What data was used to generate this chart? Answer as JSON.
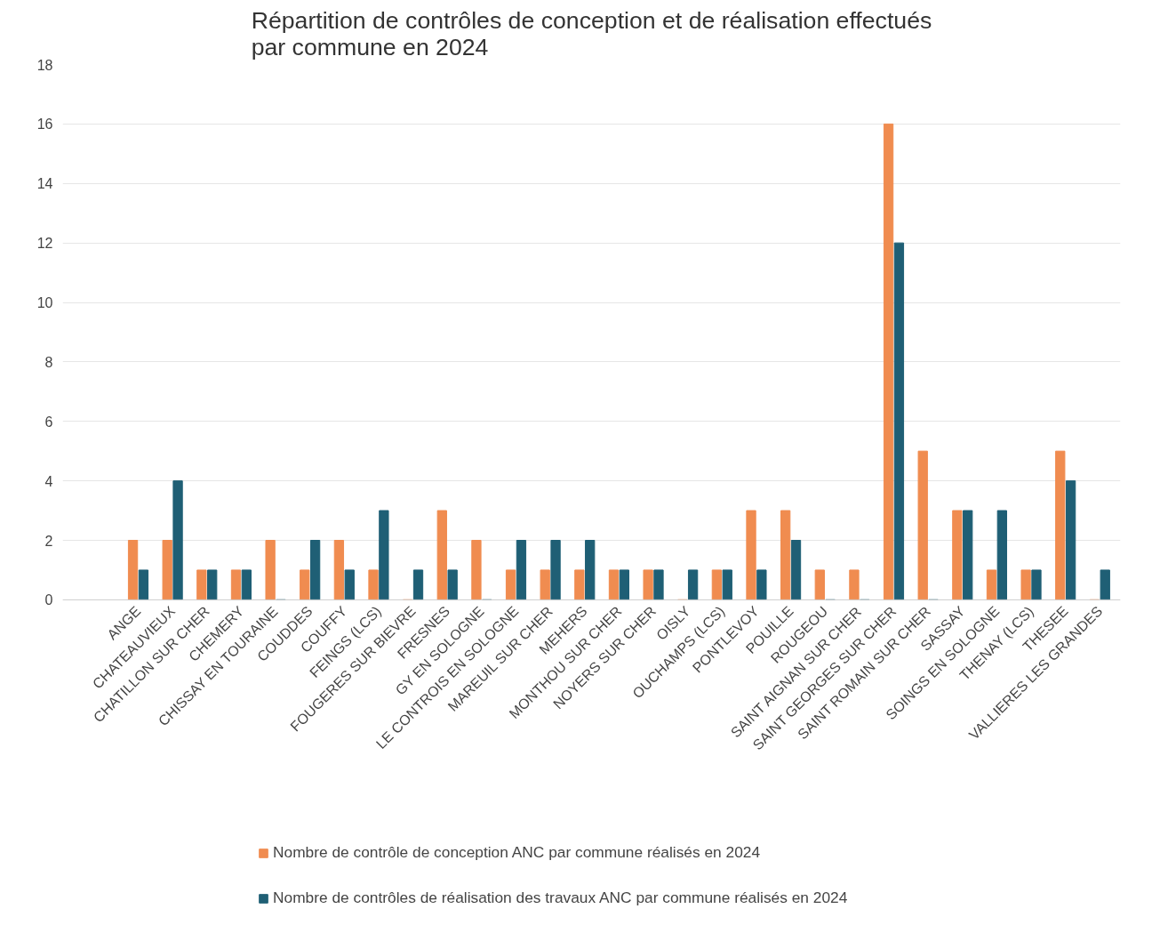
{
  "chart_data": {
    "type": "bar",
    "title": "Répartition de contrôles de conception et de réalisation effectués\npar commune en 2024",
    "categories": [
      "ANGE",
      "CHATEAUVIEUX",
      "CHATILLON SUR CHER",
      "CHEMERY",
      "CHISSAY EN TOURAINE",
      "COUDDES",
      "COUFFY",
      "FEINGS (LCS)",
      "FOUGERES SUR BIEVRE",
      "FRESNES",
      "GY EN SOLOGNE",
      "LE CONTROIS EN SOLOGNE",
      "MAREUIL SUR CHER",
      "MEHERS",
      "MONTHOU SUR CHER",
      "NOYERS SUR CHER",
      "OISLY",
      "OUCHAMPS (LCS)",
      "PONTLEVOY",
      "POUILLE",
      "ROUGEOU",
      "SAINT AIGNAN SUR CHER",
      "SAINT GEORGES SUR CHER",
      "SAINT ROMAIN SUR CHER",
      "SASSAY",
      "SOINGS EN SOLOGNE",
      "THENAY (LCS)",
      "THESEE",
      "VALLIERES LES GRANDES"
    ],
    "series": [
      {
        "name": "Nombre de contrôle de conception ANC par commune réalisés en 2024",
        "color": "#f08c50",
        "values": [
          2,
          2,
          1,
          1,
          2,
          1,
          2,
          1,
          0,
          3,
          2,
          1,
          1,
          1,
          1,
          1,
          0,
          1,
          3,
          3,
          1,
          1,
          16,
          5,
          3,
          1,
          1,
          5,
          0
        ]
      },
      {
        "name": "Nombre de contrôles de réalisation des travaux ANC par commune réalisés en 2024",
        "color": "#1f5f75",
        "values": [
          1,
          4,
          1,
          1,
          0,
          2,
          1,
          3,
          1,
          1,
          0,
          2,
          2,
          2,
          1,
          1,
          1,
          1,
          1,
          2,
          0,
          0,
          12,
          0,
          3,
          3,
          1,
          4,
          1
        ]
      }
    ],
    "ylim": [
      0,
      18
    ],
    "yticks": [
      0,
      2,
      4,
      6,
      8,
      10,
      12,
      14,
      16,
      18
    ],
    "grid": "y",
    "legend": "bottom"
  }
}
